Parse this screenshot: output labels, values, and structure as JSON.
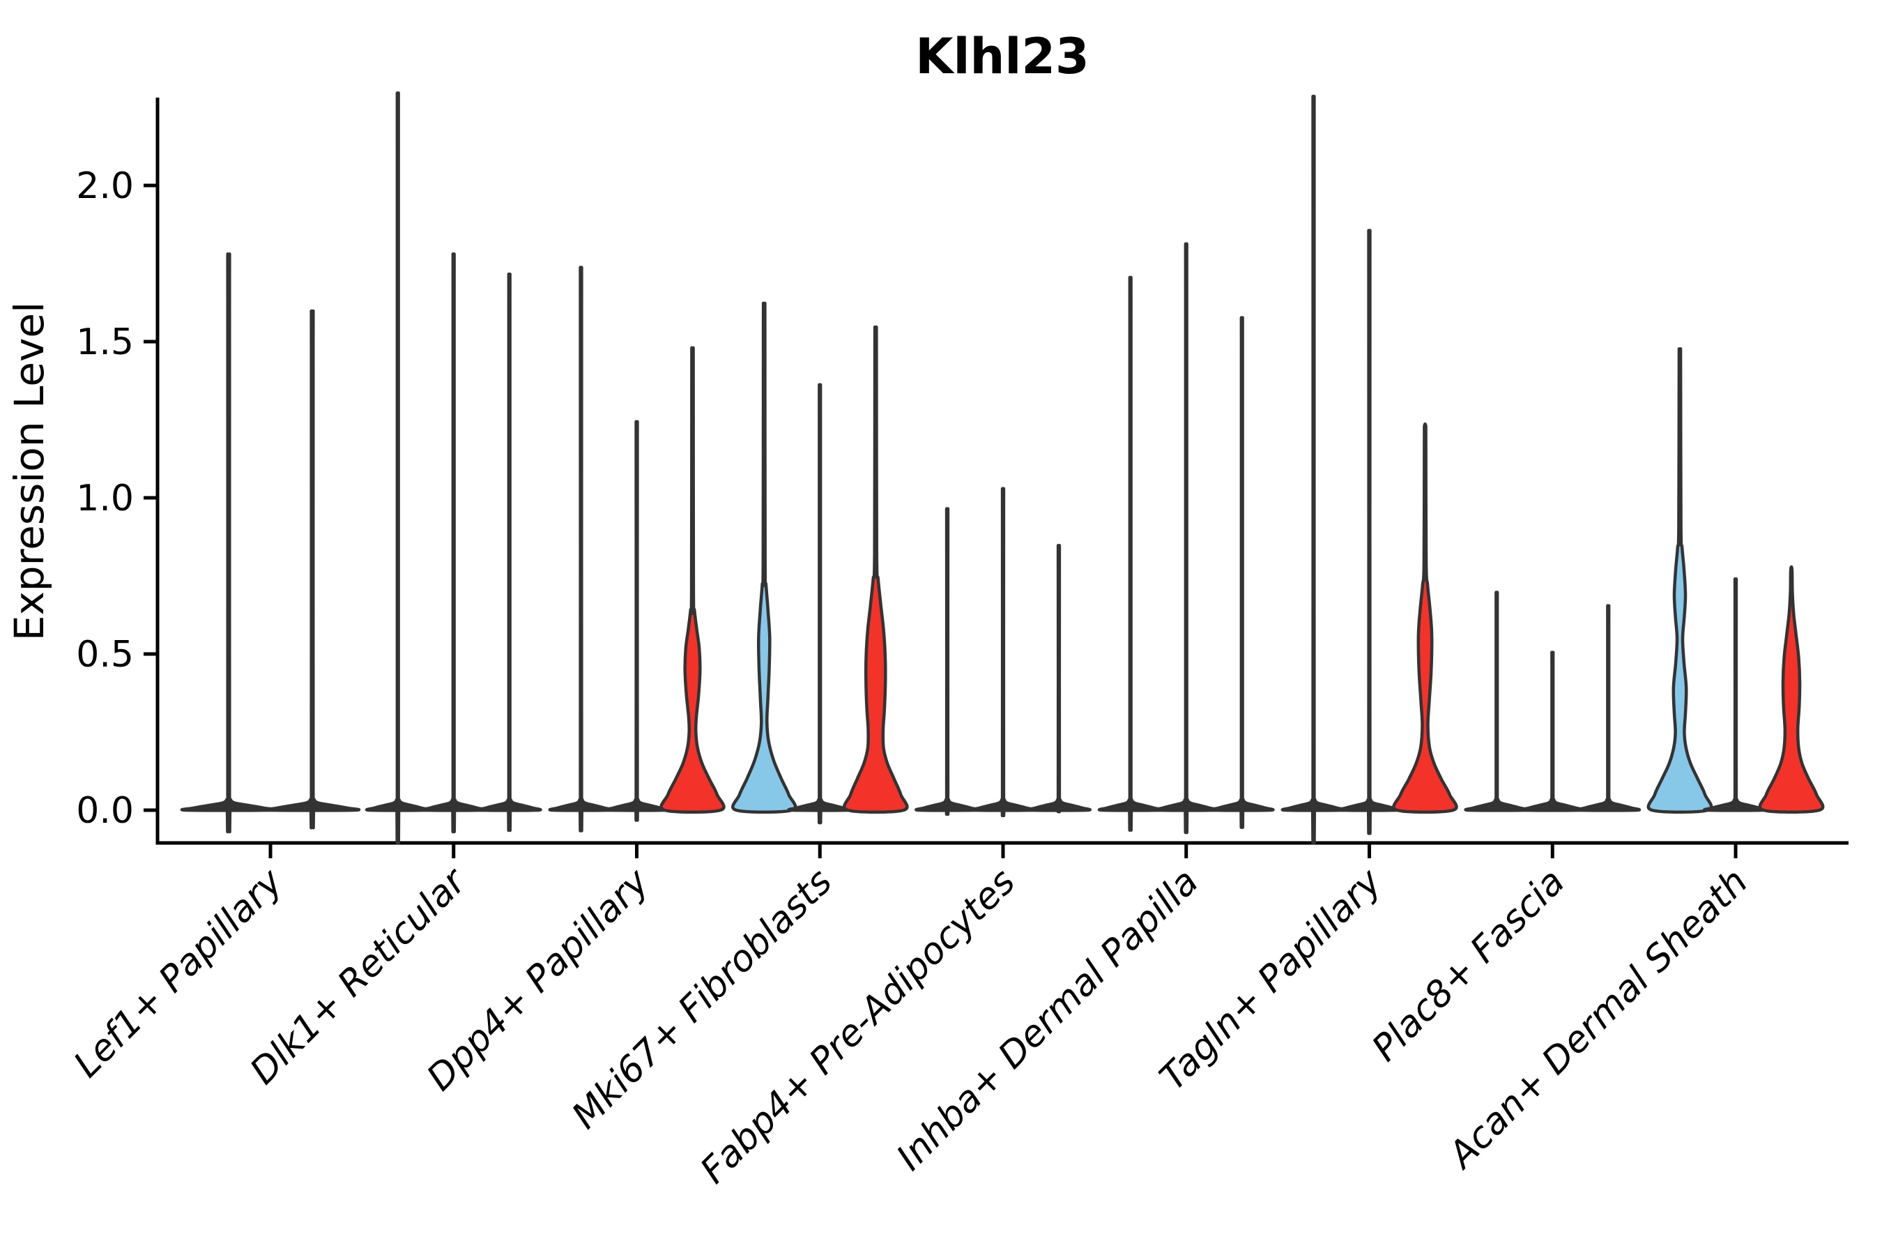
{
  "chart_data": {
    "type": "violin",
    "title": "Klhl23",
    "ylabel": "Expression Level",
    "xlabel": "",
    "ylim": [
      0,
      2.28
    ],
    "grid": false,
    "legend": null,
    "yticks": [
      0.0,
      0.5,
      1.0,
      1.5,
      2.0
    ],
    "ytick_labels": [
      "0.0",
      "0.5",
      "1.0",
      "1.5",
      "2.0"
    ],
    "categories": [
      "Lef1+ Papillary",
      "Dlk1+ Reticular",
      "Dpp4+ Papillary",
      "Mki67+ Fibroblasts",
      "Fabp4+ Pre-Adipocytes",
      "Inhba+ Dermal Papilla",
      "Tagln+ Papillary",
      "Plac8+ Fascia",
      "Acan+ Dermal Sheath"
    ],
    "colors": {
      "outline": "#333333",
      "axis": "#000000",
      "red": "#F3322A",
      "blue": "#87C7E8"
    },
    "spike_base_profile": [
      [
        0,
        1
      ],
      [
        0.007,
        0.84
      ],
      [
        0.015,
        0.5
      ],
      [
        0.023,
        0.15
      ],
      [
        0.034,
        0.045
      ],
      [
        0.055,
        0.022
      ]
    ],
    "spike_halfwidth_fraction": 0.022,
    "groups": [
      {
        "category": "Lef1+ Papillary",
        "violins": [
          {
            "max": 1.69,
            "fill": null
          },
          {
            "max": 1.52,
            "fill": null
          }
        ]
      },
      {
        "category": "Dlk1+ Reticular",
        "violins": [
          {
            "max": 2.17,
            "fill": null
          },
          {
            "max": 1.69,
            "fill": null
          },
          {
            "max": 1.63,
            "fill": null
          }
        ]
      },
      {
        "category": "Dpp4+ Papillary",
        "violins": [
          {
            "max": 1.65,
            "fill": null
          },
          {
            "max": 1.19,
            "fill": null
          },
          {
            "max": 1.46,
            "fill": "#F3322A",
            "profile": [
              [
                0,
                1
              ],
              [
                0.05,
                0.88
              ],
              [
                0.1,
                0.6
              ],
              [
                0.15,
                0.34
              ],
              [
                0.2,
                0.18
              ],
              [
                0.25,
                0.12
              ],
              [
                0.3,
                0.14
              ],
              [
                0.37,
                0.22
              ],
              [
                0.45,
                0.27
              ],
              [
                0.52,
                0.24
              ],
              [
                0.58,
                0.15
              ],
              [
                0.64,
                0.07
              ],
              [
                0.7,
                0.035
              ],
              [
                1.41,
                0.028
              ],
              [
                1.46,
                0.022
              ]
            ]
          }
        ]
      },
      {
        "category": "Mki67+ Fibroblasts",
        "violins": [
          {
            "max": 1.6,
            "fill": "#87C7E8",
            "profile": [
              [
                0,
                1
              ],
              [
                0.05,
                0.88
              ],
              [
                0.1,
                0.62
              ],
              [
                0.16,
                0.34
              ],
              [
                0.22,
                0.16
              ],
              [
                0.28,
                0.1
              ],
              [
                0.35,
                0.13
              ],
              [
                0.45,
                0.18
              ],
              [
                0.55,
                0.2
              ],
              [
                0.64,
                0.14
              ],
              [
                0.72,
                0.07
              ],
              [
                0.8,
                0.035
              ],
              [
                1.55,
                0.028
              ],
              [
                1.6,
                0.022
              ]
            ]
          },
          {
            "max": 1.3,
            "fill": null
          },
          {
            "max": 1.53,
            "fill": "#F3322A",
            "profile": [
              [
                0,
                1
              ],
              [
                0.05,
                0.9
              ],
              [
                0.1,
                0.66
              ],
              [
                0.15,
                0.42
              ],
              [
                0.2,
                0.28
              ],
              [
                0.26,
                0.27
              ],
              [
                0.33,
                0.32
              ],
              [
                0.42,
                0.35
              ],
              [
                0.5,
                0.34
              ],
              [
                0.58,
                0.28
              ],
              [
                0.66,
                0.18
              ],
              [
                0.74,
                0.09
              ],
              [
                0.82,
                0.04
              ],
              [
                1.48,
                0.028
              ],
              [
                1.53,
                0.022
              ]
            ]
          }
        ]
      },
      {
        "category": "Fabp4+ Pre-Adipocytes",
        "violins": [
          {
            "max": 0.93,
            "fill": null
          },
          {
            "max": 0.99,
            "fill": null
          },
          {
            "max": 0.82,
            "fill": null
          }
        ]
      },
      {
        "category": "Inhba+ Dermal Papilla",
        "violins": [
          {
            "max": 1.62,
            "fill": null
          },
          {
            "max": 1.72,
            "fill": null
          },
          {
            "max": 1.5,
            "fill": null
          }
        ]
      },
      {
        "category": "Tagln+ Papillary",
        "violins": [
          {
            "max": 2.16,
            "fill": null
          },
          {
            "max": 1.76,
            "fill": null
          },
          {
            "max": 1.23,
            "fill": "#F3322A",
            "profile": [
              [
                0,
                1
              ],
              [
                0.05,
                0.88
              ],
              [
                0.1,
                0.58
              ],
              [
                0.15,
                0.32
              ],
              [
                0.2,
                0.16
              ],
              [
                0.27,
                0.1
              ],
              [
                0.35,
                0.15
              ],
              [
                0.45,
                0.22
              ],
              [
                0.56,
                0.24
              ],
              [
                0.64,
                0.18
              ],
              [
                0.72,
                0.09
              ],
              [
                0.79,
                0.04
              ],
              [
                1.18,
                0.028
              ],
              [
                1.23,
                0.022
              ]
            ]
          }
        ]
      },
      {
        "category": "Plac8+ Fascia",
        "violins": [
          {
            "max": 0.68,
            "fill": null
          },
          {
            "max": 0.5,
            "fill": null
          },
          {
            "max": 0.64,
            "fill": null
          }
        ]
      },
      {
        "category": "Acan+ Dermal Sheath",
        "violins": [
          {
            "max": 1.47,
            "fill": "#87C7E8",
            "profile": [
              [
                0,
                1
              ],
              [
                0.05,
                0.9
              ],
              [
                0.1,
                0.64
              ],
              [
                0.15,
                0.38
              ],
              [
                0.2,
                0.22
              ],
              [
                0.25,
                0.16
              ],
              [
                0.31,
                0.2
              ],
              [
                0.39,
                0.23
              ],
              [
                0.47,
                0.15
              ],
              [
                0.55,
                0.1
              ],
              [
                0.62,
                0.16
              ],
              [
                0.69,
                0.2
              ],
              [
                0.77,
                0.15
              ],
              [
                0.84,
                0.08
              ],
              [
                0.91,
                0.04
              ],
              [
                1.42,
                0.028
              ],
              [
                1.47,
                0.022
              ]
            ]
          },
          {
            "max": 0.72,
            "fill": null
          },
          {
            "max": 0.77,
            "fill": "#F3322A",
            "profile": [
              [
                0,
                1
              ],
              [
                0.05,
                0.9
              ],
              [
                0.1,
                0.62
              ],
              [
                0.15,
                0.38
              ],
              [
                0.2,
                0.26
              ],
              [
                0.26,
                0.23
              ],
              [
                0.33,
                0.28
              ],
              [
                0.41,
                0.3
              ],
              [
                0.49,
                0.26
              ],
              [
                0.56,
                0.17
              ],
              [
                0.63,
                0.08
              ],
              [
                0.7,
                0.035
              ],
              [
                0.77,
                0.022
              ]
            ]
          }
        ]
      }
    ]
  }
}
